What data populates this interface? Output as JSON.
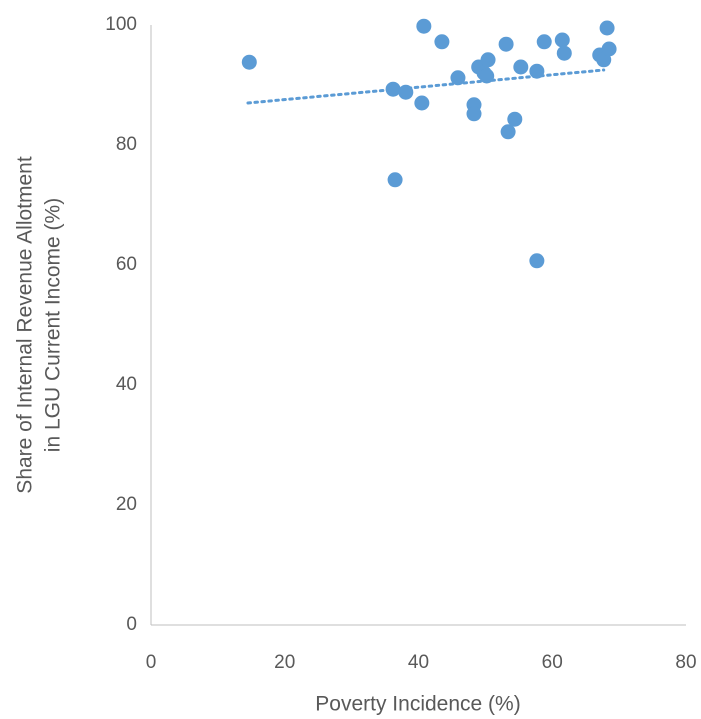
{
  "chart_data": {
    "type": "scatter",
    "xlabel": "Poverty Incidence (%)",
    "ylabel": [
      "Share of Internal Revenue Allotment",
      "in LGU Current Income (%)"
    ],
    "color": "#5b9bd5",
    "x": [
      14.7,
      40.8,
      43.5,
      36.2,
      38.1,
      40.5,
      36.5,
      45.9,
      48.3,
      48.3,
      49.0,
      49.8,
      50.2,
      50.4,
      53.1,
      53.4,
      54.4,
      55.3,
      57.7,
      57.7,
      58.8,
      61.5,
      61.8,
      67.1,
      67.7,
      68.2,
      68.5
    ],
    "values": [
      93.8,
      99.8,
      97.2,
      89.3,
      88.8,
      87.0,
      74.2,
      91.2,
      86.7,
      85.2,
      93.0,
      92.0,
      91.5,
      94.2,
      96.8,
      82.2,
      84.3,
      93.0,
      92.3,
      60.7,
      97.2,
      97.5,
      95.3,
      95.0,
      94.2,
      99.5,
      96.0
    ],
    "trendline": {
      "x": [
        14.5,
        67.7
      ],
      "values": [
        87.0,
        92.5
      ]
    },
    "xlim": [
      0,
      80
    ],
    "xticks": [
      0,
      20,
      40,
      60,
      80
    ],
    "ylim": [
      0,
      100
    ],
    "yticks": [
      0,
      20,
      40,
      60,
      80,
      100
    ],
    "grid": false
  }
}
